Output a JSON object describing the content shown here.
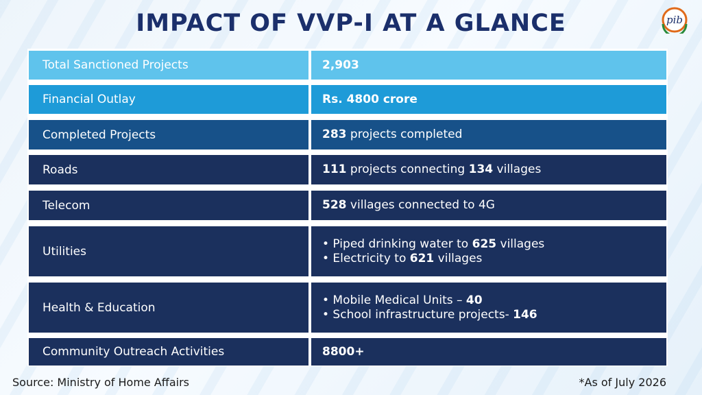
{
  "title": "IMPACT OF VVP-I AT A GLANCE",
  "logo": {
    "text": "pib",
    "icon": "pib-logo-icon"
  },
  "colors": {
    "title": "#1b2f6b",
    "row_light": "#5fc3ec",
    "row_mid": "#1e9bd8",
    "row_blue": "#175189",
    "row_dark": "#1b305d"
  },
  "rows": [
    {
      "label": "Total Sanctioned Projects",
      "value_bold": "2,903",
      "value_rest": ""
    },
    {
      "label": "Financial Outlay",
      "value_bold": "Rs. 4800 crore",
      "value_rest": ""
    },
    {
      "label": "Completed Projects",
      "value_bold": "283",
      "value_rest": " projects completed"
    },
    {
      "label": "Roads",
      "value_parts": [
        "111",
        " projects connecting ",
        "134",
        " villages"
      ]
    },
    {
      "label": "Telecom",
      "value_bold": "528",
      "value_rest": " villages connected to 4G"
    },
    {
      "label": "Utilities",
      "bullets": [
        {
          "text": "• Piped drinking water to ",
          "bold": "625",
          "after": " villages"
        },
        {
          "text": "• Electricity to ",
          "bold": "621",
          "after": " villages"
        }
      ]
    },
    {
      "label": "Health & Education",
      "bullets": [
        {
          "text": "• Mobile Medical Units – ",
          "bold": "40",
          "after": ""
        },
        {
          "text": "• School infrastructure projects- ",
          "bold": "146",
          "after": ""
        }
      ]
    },
    {
      "label": "Community Outreach Activities",
      "value_bold": "8800+",
      "value_rest": ""
    }
  ],
  "footer": {
    "source": "Source: Ministry of Home Affairs",
    "note": "*As of July 2026"
  }
}
